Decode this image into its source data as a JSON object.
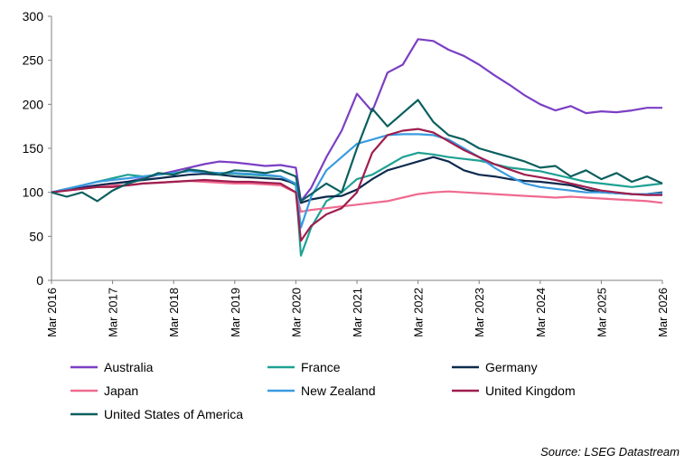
{
  "chart_data": {
    "type": "line",
    "title": "",
    "xlabel": "",
    "ylabel": "",
    "ylim": [
      0,
      300
    ],
    "yticks": [
      0,
      50,
      100,
      150,
      200,
      250,
      300
    ],
    "x_ticks": [
      "Mar 2016",
      "Mar 2017",
      "Mar 2018",
      "Mar 2019",
      "Mar 2020",
      "Mar 2021",
      "Mar 2022",
      "Mar 2023",
      "Mar 2024",
      "Mar 2025",
      "Mar 2026"
    ],
    "grid": false,
    "legend_position": "bottom",
    "x": [
      "2016-03",
      "2016-06",
      "2016-09",
      "2016-12",
      "2017-03",
      "2017-06",
      "2017-09",
      "2017-12",
      "2018-03",
      "2018-06",
      "2018-09",
      "2018-12",
      "2019-03",
      "2019-06",
      "2019-09",
      "2019-12",
      "2020-03",
      "2020-04",
      "2020-06",
      "2020-09",
      "2020-12",
      "2021-03",
      "2021-06",
      "2021-09",
      "2021-12",
      "2022-03",
      "2022-06",
      "2022-09",
      "2022-12",
      "2023-03",
      "2023-06",
      "2023-09",
      "2023-12",
      "2024-03",
      "2024-06",
      "2024-09",
      "2024-12",
      "2025-03",
      "2025-06",
      "2025-09",
      "2025-12",
      "2026-03"
    ],
    "series": [
      {
        "name": "Australia",
        "color": "#7B3FC4",
        "values": [
          100,
          104,
          106,
          108,
          110,
          112,
          116,
          120,
          124,
          128,
          132,
          135,
          134,
          132,
          130,
          131,
          128,
          90,
          105,
          140,
          170,
          212,
          192,
          236,
          245,
          274,
          272,
          262,
          255,
          245,
          233,
          222,
          210,
          200,
          193,
          198,
          190,
          192,
          191,
          193,
          196,
          196
        ]
      },
      {
        "name": "France",
        "color": "#1FA193",
        "values": [
          100,
          104,
          108,
          112,
          116,
          120,
          118,
          120,
          122,
          124,
          123,
          122,
          121,
          120,
          119,
          118,
          108,
          28,
          60,
          90,
          100,
          115,
          120,
          130,
          140,
          145,
          143,
          140,
          138,
          136,
          132,
          128,
          126,
          124,
          120,
          116,
          112,
          110,
          108,
          106,
          108,
          110
        ]
      },
      {
        "name": "Germany",
        "color": "#0E2A4E",
        "values": [
          100,
          103,
          105,
          108,
          110,
          112,
          114,
          116,
          118,
          120,
          121,
          120,
          118,
          117,
          116,
          115,
          110,
          88,
          92,
          95,
          96,
          103,
          115,
          125,
          130,
          135,
          140,
          135,
          125,
          120,
          118,
          115,
          113,
          112,
          110,
          108,
          103,
          100,
          99,
          98,
          98,
          100
        ]
      },
      {
        "name": "Japan",
        "color": "#EF6A8F",
        "values": [
          100,
          102,
          104,
          106,
          108,
          108,
          110,
          111,
          112,
          113,
          112,
          111,
          110,
          110,
          109,
          108,
          100,
          78,
          80,
          82,
          84,
          86,
          88,
          90,
          94,
          98,
          100,
          101,
          100,
          99,
          98,
          97,
          96,
          95,
          94,
          95,
          94,
          93,
          92,
          91,
          90,
          88
        ]
      },
      {
        "name": "New Zealand",
        "color": "#3A9BE0",
        "values": [
          100,
          104,
          108,
          112,
          114,
          116,
          118,
          120,
          122,
          124,
          123,
          122,
          122,
          121,
          120,
          118,
          110,
          60,
          95,
          125,
          140,
          155,
          160,
          165,
          166,
          166,
          165,
          160,
          150,
          140,
          128,
          118,
          110,
          106,
          104,
          102,
          100,
          100,
          99,
          98,
          98,
          99
        ]
      },
      {
        "name": "United Kingdom",
        "color": "#9E1E4E",
        "values": [
          100,
          102,
          104,
          106,
          106,
          108,
          110,
          111,
          112,
          113,
          114,
          113,
          112,
          112,
          111,
          110,
          100,
          45,
          62,
          75,
          82,
          100,
          145,
          165,
          170,
          172,
          168,
          158,
          148,
          140,
          132,
          126,
          120,
          117,
          114,
          110,
          106,
          102,
          100,
          98,
          97,
          97
        ]
      },
      {
        "name": "United States of America",
        "color": "#0B5F5E",
        "values": [
          100,
          95,
          100,
          90,
          102,
          110,
          115,
          122,
          120,
          126,
          124,
          120,
          125,
          124,
          122,
          125,
          118,
          90,
          98,
          110,
          100,
          150,
          195,
          175,
          190,
          205,
          180,
          165,
          160,
          150,
          145,
          140,
          135,
          128,
          130,
          118,
          125,
          115,
          122,
          112,
          118,
          110
        ]
      }
    ]
  },
  "source": "Source: LSEG Datastream"
}
